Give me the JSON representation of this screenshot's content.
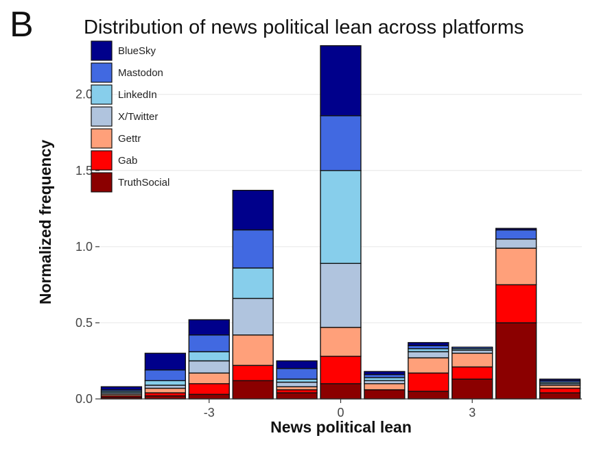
{
  "panel_label": "B",
  "chart_data": {
    "type": "bar",
    "stacked": true,
    "title": "Distribution of news political lean across platforms",
    "xlabel": "News political lean",
    "ylabel": "Normalized frequency",
    "x": [
      -5,
      -4,
      -3,
      -2,
      -1,
      0,
      1,
      2,
      3,
      4,
      5
    ],
    "xticks": [
      -3,
      0,
      3
    ],
    "xtick_labels": [
      "-3",
      "0",
      "3"
    ],
    "ylim": [
      0,
      2.35
    ],
    "yticks": [
      0.0,
      0.5,
      1.0,
      1.5,
      2.0
    ],
    "ytick_labels": [
      "0.0",
      "0.5",
      "1.0",
      "1.5",
      "2.0"
    ],
    "grid": "horizontal",
    "legend_position": "top-left",
    "series": [
      {
        "name": "TruthSocial",
        "color": "#8B0000",
        "values": [
          0.01,
          0.02,
          0.03,
          0.12,
          0.04,
          0.1,
          0.06,
          0.05,
          0.13,
          0.5,
          0.04
        ]
      },
      {
        "name": "Gab",
        "color": "#FF0000",
        "values": [
          0.01,
          0.02,
          0.07,
          0.1,
          0.02,
          0.18,
          0.0,
          0.12,
          0.08,
          0.25,
          0.03
        ]
      },
      {
        "name": "Gettr",
        "color": "#FFA07A",
        "values": [
          0.01,
          0.03,
          0.07,
          0.2,
          0.02,
          0.19,
          0.04,
          0.1,
          0.09,
          0.24,
          0.02
        ]
      },
      {
        "name": "X/Twitter",
        "color": "#B0C4DE",
        "values": [
          0.01,
          0.02,
          0.08,
          0.24,
          0.03,
          0.42,
          0.02,
          0.04,
          0.02,
          0.06,
          0.01
        ]
      },
      {
        "name": "LinkedIn",
        "color": "#87CEEB",
        "values": [
          0.01,
          0.03,
          0.06,
          0.2,
          0.02,
          0.61,
          0.02,
          0.02,
          0.01,
          0.0,
          0.01
        ]
      },
      {
        "name": "Mastodon",
        "color": "#4169E1",
        "values": [
          0.01,
          0.07,
          0.11,
          0.25,
          0.07,
          0.36,
          0.02,
          0.02,
          0.01,
          0.06,
          0.01
        ]
      },
      {
        "name": "BlueSky",
        "color": "#00008B",
        "values": [
          0.02,
          0.11,
          0.1,
          0.26,
          0.05,
          0.46,
          0.02,
          0.02,
          0.0,
          0.01,
          0.01
        ]
      }
    ],
    "legend_order": [
      "BlueSky",
      "Mastodon",
      "LinkedIn",
      "X/Twitter",
      "Gettr",
      "Gab",
      "TruthSocial"
    ]
  }
}
